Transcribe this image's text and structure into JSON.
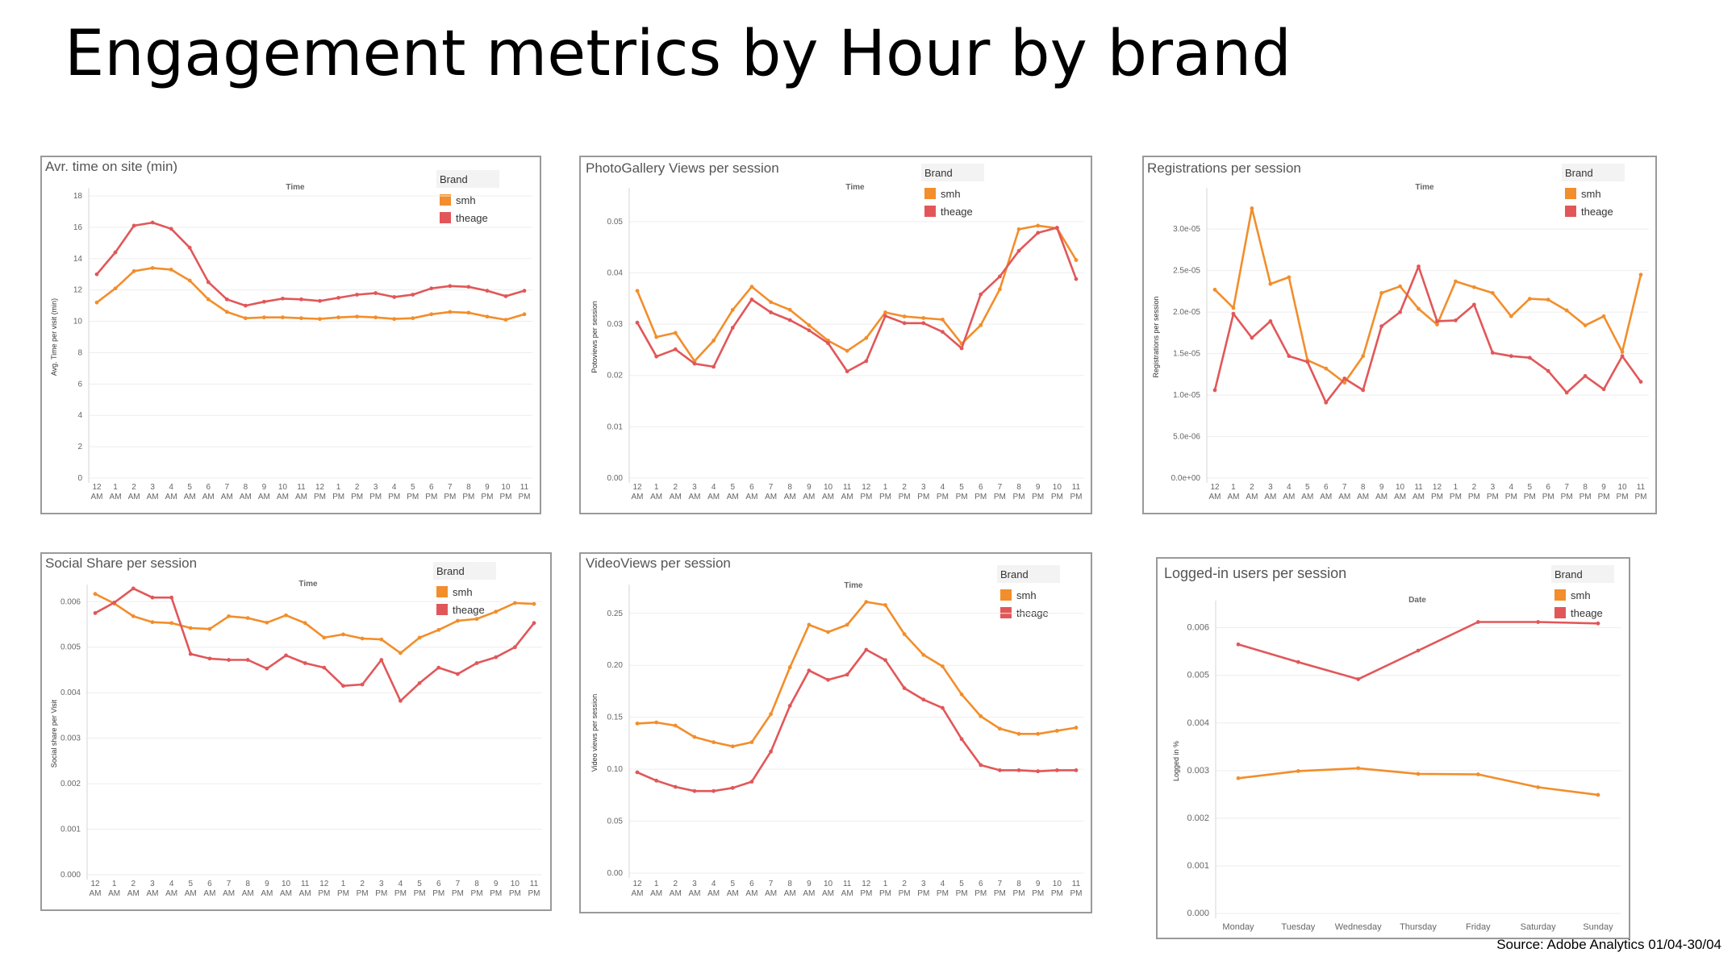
{
  "page": {
    "title": "Engagement metrics by Hour by brand",
    "source": "Source: Adobe Analytics 01/04-30/04"
  },
  "colors": {
    "smh": "#f28e2b",
    "theage": "#e15759"
  },
  "hour_labels": [
    "12|AM",
    "1|AM",
    "2|AM",
    "3|AM",
    "4|AM",
    "5|AM",
    "6|AM",
    "7|AM",
    "8|AM",
    "9|AM",
    "10|AM",
    "11|AM",
    "12|PM",
    "1|PM",
    "2|PM",
    "3|PM",
    "4|PM",
    "5|PM",
    "6|PM",
    "7|PM",
    "8|PM",
    "9|PM",
    "10|PM",
    "11|PM"
  ],
  "chart_data": [
    {
      "id": "time-on-site",
      "type": "line",
      "title": "Avr. time on site (min)",
      "xlabel": "Time",
      "ylabel": "Avg. Time per visit (min)",
      "legend_title": "Brand",
      "ylim": [
        0,
        18
      ],
      "yticks": [
        "0",
        "2",
        "4",
        "6",
        "8",
        "10",
        "12",
        "14",
        "16",
        "18"
      ],
      "ytick_values": [
        0,
        2,
        4,
        6,
        8,
        10,
        12,
        14,
        16,
        18
      ],
      "series": [
        {
          "name": "smh",
          "color": "#f28e2b",
          "values": [
            11.2,
            12.1,
            13.2,
            13.4,
            13.3,
            12.6,
            11.4,
            10.6,
            10.2,
            10.25,
            10.25,
            10.2,
            10.15,
            10.25,
            10.3,
            10.25,
            10.15,
            10.2,
            10.45,
            10.6,
            10.55,
            10.3,
            10.1,
            10.45
          ]
        },
        {
          "name": "theage",
          "color": "#e15759",
          "values": [
            13.0,
            14.4,
            16.1,
            16.3,
            15.9,
            14.7,
            12.5,
            11.4,
            11.0,
            11.25,
            11.45,
            11.4,
            11.3,
            11.5,
            11.7,
            11.8,
            11.55,
            11.7,
            12.1,
            12.25,
            12.2,
            11.95,
            11.6,
            11.95
          ]
        }
      ]
    },
    {
      "id": "photogallery",
      "type": "line",
      "title": "PhotoGallery Views per session",
      "xlabel": "Time",
      "ylabel": "Potoviews per session",
      "legend_title": "Brand",
      "ylim": [
        0,
        0.055
      ],
      "yticks": [
        "0.00",
        "0.01",
        "0.02",
        "0.03",
        "0.04",
        "0.05"
      ],
      "ytick_values": [
        0,
        0.01,
        0.02,
        0.03,
        0.04,
        0.05
      ],
      "series": [
        {
          "name": "smh",
          "color": "#f28e2b",
          "values": [
            0.0365,
            0.0275,
            0.0283,
            0.0228,
            0.0268,
            0.0328,
            0.0373,
            0.0343,
            0.0328,
            0.0298,
            0.0268,
            0.0248,
            0.0273,
            0.0323,
            0.0315,
            0.0312,
            0.0309,
            0.0262,
            0.0298,
            0.0368,
            0.0485,
            0.0492,
            0.0487,
            0.0425
          ]
        },
        {
          "name": "theage",
          "color": "#e15759",
          "values": [
            0.0303,
            0.0237,
            0.0251,
            0.0223,
            0.0217,
            0.0293,
            0.0348,
            0.0323,
            0.0308,
            0.0288,
            0.0263,
            0.0208,
            0.0228,
            0.0316,
            0.0302,
            0.0302,
            0.0285,
            0.0253,
            0.0358,
            0.0393,
            0.0443,
            0.0478,
            0.0488,
            0.0388
          ]
        }
      ]
    },
    {
      "id": "registrations",
      "type": "line",
      "title": "Registrations per session",
      "xlabel": "Time",
      "ylabel": "Registrations per session",
      "legend_title": "Brand",
      "ylim": [
        0,
        3.4e-05
      ],
      "yticks": [
        "0.0e+00",
        "5.0e-06",
        "1.0e-05",
        "1.5e-05",
        "2.0e-05",
        "2.5e-05",
        "3.0e-05"
      ],
      "ytick_values": [
        0,
        5e-06,
        1e-05,
        1.5e-05,
        2e-05,
        2.5e-05,
        3e-05
      ],
      "series": [
        {
          "name": "smh",
          "color": "#f28e2b",
          "values": [
            2.27e-05,
            2.05e-05,
            3.25e-05,
            2.34e-05,
            2.42e-05,
            1.42e-05,
            1.32e-05,
            1.15e-05,
            1.47e-05,
            2.23e-05,
            2.31e-05,
            2.04e-05,
            1.85e-05,
            2.37e-05,
            2.3e-05,
            2.23e-05,
            1.95e-05,
            2.16e-05,
            2.15e-05,
            2.02e-05,
            1.84e-05,
            1.95e-05,
            1.52e-05,
            2.45e-05
          ]
        },
        {
          "name": "theage",
          "color": "#e15759",
          "values": [
            1.06e-05,
            1.98e-05,
            1.69e-05,
            1.89e-05,
            1.47e-05,
            1.4e-05,
            9.1e-06,
            1.2e-05,
            1.06e-05,
            1.83e-05,
            2e-05,
            2.55e-05,
            1.89e-05,
            1.9e-05,
            2.09e-05,
            1.51e-05,
            1.47e-05,
            1.45e-05,
            1.29e-05,
            1.03e-05,
            1.23e-05,
            1.07e-05,
            1.47e-05,
            1.16e-05
          ]
        }
      ]
    },
    {
      "id": "social-share",
      "type": "line",
      "title": "Social Share per session",
      "xlabel": "Time",
      "ylabel": "Social share per Visit",
      "legend_title": "Brand",
      "ylim": [
        0,
        0.0062
      ],
      "yticks": [
        "0.000",
        "0.001",
        "0.002",
        "0.003",
        "0.004",
        "0.005",
        "0.006"
      ],
      "ytick_values": [
        0,
        0.001,
        0.002,
        0.003,
        0.004,
        0.005,
        0.006
      ],
      "series": [
        {
          "name": "smh",
          "color": "#f28e2b",
          "values": [
            0.00617,
            0.00596,
            0.00568,
            0.00555,
            0.00553,
            0.00542,
            0.0054,
            0.00568,
            0.00564,
            0.00554,
            0.0057,
            0.00553,
            0.00521,
            0.00528,
            0.00519,
            0.00517,
            0.00487,
            0.00521,
            0.00538,
            0.00558,
            0.00562,
            0.00578,
            0.00597,
            0.00595
          ]
        },
        {
          "name": "theage",
          "color": "#e15759",
          "values": [
            0.00575,
            0.00598,
            0.00629,
            0.00609,
            0.00609,
            0.00485,
            0.00475,
            0.00472,
            0.00472,
            0.00453,
            0.00482,
            0.00465,
            0.00455,
            0.00415,
            0.00418,
            0.00472,
            0.00382,
            0.00421,
            0.00455,
            0.00441,
            0.00465,
            0.00478,
            0.005,
            0.00553
          ]
        }
      ]
    },
    {
      "id": "video-views",
      "type": "line",
      "title": "VideoViews per session",
      "xlabel": "Time",
      "ylabel": "Video views per session",
      "legend_title": "Brand",
      "ylim": [
        0,
        0.27
      ],
      "yticks": [
        "0.00",
        "0.05",
        "0.10",
        "0.15",
        "0.20",
        "0.25"
      ],
      "ytick_values": [
        0,
        0.05,
        0.1,
        0.15,
        0.2,
        0.25
      ],
      "series": [
        {
          "name": "smh",
          "color": "#f28e2b",
          "values": [
            0.144,
            0.145,
            0.142,
            0.131,
            0.126,
            0.122,
            0.126,
            0.153,
            0.198,
            0.239,
            0.232,
            0.239,
            0.261,
            0.258,
            0.23,
            0.21,
            0.199,
            0.172,
            0.151,
            0.139,
            0.134,
            0.134,
            0.137,
            0.14
          ]
        },
        {
          "name": "theage",
          "color": "#e15759",
          "values": [
            0.097,
            0.089,
            0.083,
            0.079,
            0.079,
            0.082,
            0.088,
            0.117,
            0.161,
            0.195,
            0.186,
            0.191,
            0.215,
            0.205,
            0.178,
            0.167,
            0.159,
            0.129,
            0.104,
            0.099,
            0.099,
            0.098,
            0.099,
            0.099
          ]
        }
      ]
    },
    {
      "id": "logged-in",
      "type": "line",
      "title": "Logged-in users per session",
      "xlabel": "Date",
      "ylabel": "Logged in %",
      "legend_title": "Brand",
      "categories": [
        "Monday",
        "Tuesday",
        "Wednesday",
        "Thursday",
        "Friday",
        "Saturday",
        "Sunday"
      ],
      "ylim": [
        0,
        0.0064
      ],
      "yticks": [
        "0.000",
        "0.001",
        "0.002",
        "0.003",
        "0.004",
        "0.005",
        "0.006"
      ],
      "ytick_values": [
        0,
        0.001,
        0.002,
        0.003,
        0.004,
        0.005,
        0.006
      ],
      "series": [
        {
          "name": "smh",
          "color": "#f28e2b",
          "values": [
            0.00284,
            0.00299,
            0.00305,
            0.00293,
            0.00292,
            0.00265,
            0.00249
          ]
        },
        {
          "name": "theage",
          "color": "#e15759",
          "values": [
            0.00565,
            0.00528,
            0.00492,
            0.00552,
            0.00612,
            0.00612,
            0.00609
          ]
        }
      ]
    }
  ]
}
